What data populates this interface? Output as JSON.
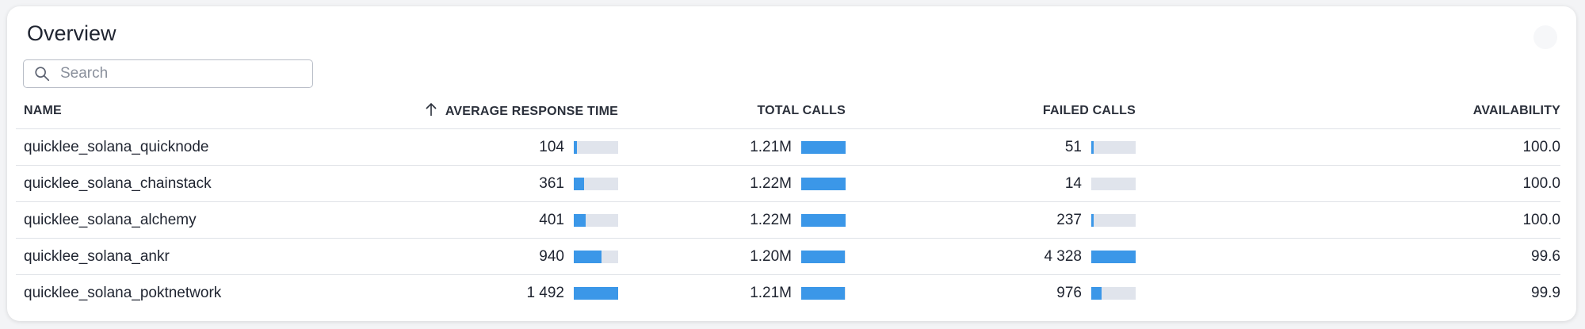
{
  "panel": {
    "title": "Overview"
  },
  "search": {
    "placeholder": "Search"
  },
  "columns": {
    "name": "NAME",
    "avg_response": "AVERAGE RESPONSE TIME",
    "total_calls": "TOTAL CALLS",
    "failed_calls": "FAILED CALLS",
    "availability": "AVAILABILITY"
  },
  "sort": {
    "column": "avg_response",
    "direction": "ascending"
  },
  "colors": {
    "bar_fill": "#3b97e8",
    "bar_track": "#e0e4ec"
  },
  "rows": [
    {
      "name": "quicklee_solana_quicknode",
      "avg_response": "104",
      "avg_response_level": 0.07,
      "total_calls": "1.21M",
      "total_calls_level": 1.0,
      "failed_calls": "51",
      "failed_calls_level": 0.012,
      "availability": "100.0"
    },
    {
      "name": "quicklee_solana_chainstack",
      "avg_response": "361",
      "avg_response_level": 0.24,
      "total_calls": "1.22M",
      "total_calls_level": 1.0,
      "failed_calls": "14",
      "failed_calls_level": 0.0,
      "availability": "100.0"
    },
    {
      "name": "quicklee_solana_alchemy",
      "avg_response": "401",
      "avg_response_level": 0.27,
      "total_calls": "1.22M",
      "total_calls_level": 1.0,
      "failed_calls": "237",
      "failed_calls_level": 0.055,
      "availability": "100.0"
    },
    {
      "name": "quicklee_solana_ankr",
      "avg_response": "940",
      "avg_response_level": 0.63,
      "total_calls": "1.20M",
      "total_calls_level": 0.98,
      "failed_calls": "4 328",
      "failed_calls_level": 1.0,
      "availability": "99.6"
    },
    {
      "name": "quicklee_solana_poktnetwork",
      "avg_response": "1 492",
      "avg_response_level": 1.0,
      "total_calls": "1.21M",
      "total_calls_level": 0.99,
      "failed_calls": "976",
      "failed_calls_level": 0.23,
      "availability": "99.9"
    }
  ]
}
